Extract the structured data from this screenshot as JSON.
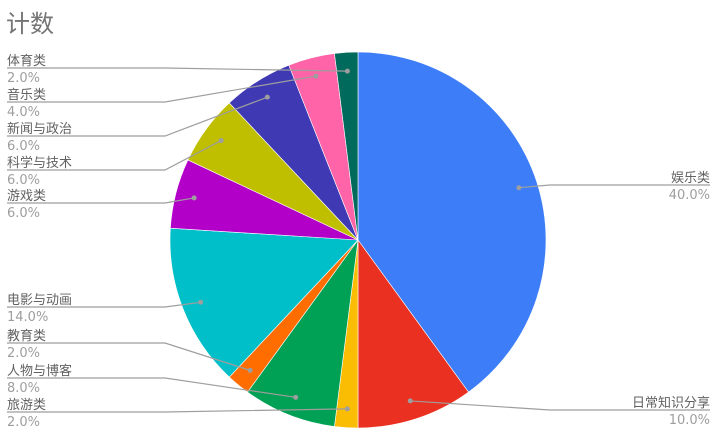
{
  "chart_data": {
    "type": "pie",
    "title": "计数",
    "start_angle_deg": 0,
    "direction": "clockwise",
    "legend": "labels with leader lines",
    "slices": [
      {
        "label": "娱乐类",
        "value": 40.0,
        "display": "40.0%",
        "color": "#3d7ef8"
      },
      {
        "label": "日常知识分享",
        "value": 10.0,
        "display": "10.0%",
        "color": "#ea3020"
      },
      {
        "label": "旅游类",
        "value": 2.0,
        "display": "2.0%",
        "color": "#fbbc04"
      },
      {
        "label": "人物与博客",
        "value": 8.0,
        "display": "8.0%",
        "color": "#00a154"
      },
      {
        "label": "教育类",
        "value": 2.0,
        "display": "2.0%",
        "color": "#ff6d00"
      },
      {
        "label": "电影与动画",
        "value": 14.0,
        "display": "14.0%",
        "color": "#00bfc8"
      },
      {
        "label": "游戏类",
        "value": 6.0,
        "display": "6.0%",
        "color": "#b300c8"
      },
      {
        "label": "科学与技术",
        "value": 6.0,
        "display": "6.0%",
        "color": "#bfbf00"
      },
      {
        "label": "新闻与政治",
        "value": 6.0,
        "display": "6.0%",
        "color": "#3f3ab3"
      },
      {
        "label": "音乐类",
        "value": 4.0,
        "display": "4.0%",
        "color": "#ff63a8"
      },
      {
        "label": "体育类",
        "value": 2.0,
        "display": "2.0%",
        "color": "#006b5c"
      }
    ]
  }
}
